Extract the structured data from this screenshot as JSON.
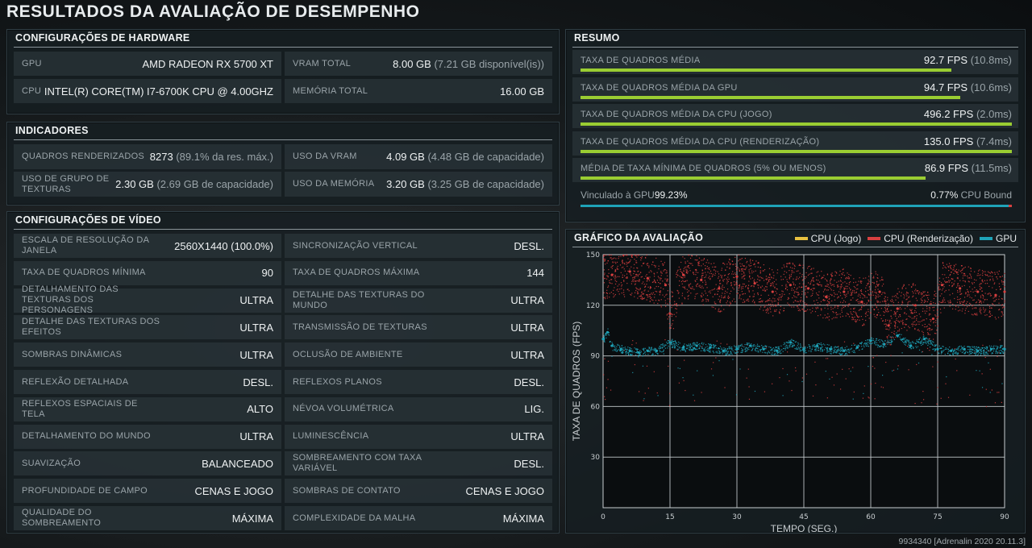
{
  "title": "RESULTADOS DA AVALIAÇÃO DE DESEMPENHO",
  "hardware": {
    "header": "CONFIGURAÇÕES DE HARDWARE",
    "rows": [
      [
        {
          "label": "GPU",
          "value": "AMD RADEON RX 5700 XT",
          "dim": ""
        },
        {
          "label": "VRAM TOTAL",
          "value": "8.00 GB",
          "dim": "(7.21 GB disponível(is))"
        }
      ],
      [
        {
          "label": "CPU",
          "value": "INTEL(R) CORE(TM) I7-6700K CPU @ 4.00GHZ",
          "dim": ""
        },
        {
          "label": "MEMÓRIA TOTAL",
          "value": "16.00 GB",
          "dim": ""
        }
      ]
    ]
  },
  "indicators": {
    "header": "INDICADORES",
    "rows": [
      [
        {
          "label": "QUADROS RENDERIZADOS",
          "value": "8273",
          "dim": "(89.1% da res. máx.)"
        },
        {
          "label": "USO DA VRAM",
          "value": "4.09 GB",
          "dim": "(4.48 GB de capacidade)"
        }
      ],
      [
        {
          "label": "USO DE GRUPO DE TEXTURAS",
          "value": "2.30 GB",
          "dim": "(2.69 GB de capacidade)"
        },
        {
          "label": "USO DA MEMÓRIA",
          "value": "3.20 GB",
          "dim": "(3.25 GB de capacidade)"
        }
      ]
    ]
  },
  "video": {
    "header": "CONFIGURAÇÕES DE VÍDEO",
    "rows": [
      [
        {
          "label": "ESCALA DE RESOLUÇÃO DA JANELA",
          "value": "2560X1440 (100.0%)"
        },
        {
          "label": "SINCRONIZAÇÃO VERTICAL",
          "value": "DESL."
        }
      ],
      [
        {
          "label": "TAXA DE QUADROS MÍNIMA",
          "value": "90"
        },
        {
          "label": "TAXA DE QUADROS MÁXIMA",
          "value": "144"
        }
      ],
      [
        {
          "label": "DETALHAMENTO DAS TEXTURAS DOS PERSONAGENS",
          "value": "ULTRA"
        },
        {
          "label": "DETALHE DAS TEXTURAS DO MUNDO",
          "value": "ULTRA"
        }
      ],
      [
        {
          "label": "DETALHE DAS TEXTURAS DOS EFEITOS",
          "value": "ULTRA"
        },
        {
          "label": "TRANSMISSÃO DE TEXTURAS",
          "value": "ULTRA"
        }
      ],
      [
        {
          "label": "SOMBRAS DINÂMICAS",
          "value": "ULTRA"
        },
        {
          "label": "OCLUSÃO DE AMBIENTE",
          "value": "ULTRA"
        }
      ],
      [
        {
          "label": "REFLEXÃO DETALHADA",
          "value": "DESL."
        },
        {
          "label": "REFLEXOS PLANOS",
          "value": "DESL."
        }
      ],
      [
        {
          "label": "REFLEXOS ESPACIAIS DE TELA",
          "value": "ALTO"
        },
        {
          "label": "NÉVOA VOLUMÉTRICA",
          "value": "LIG."
        }
      ],
      [
        {
          "label": "DETALHAMENTO DO MUNDO",
          "value": "ULTRA"
        },
        {
          "label": "LUMINESCÊNCIA",
          "value": "ULTRA"
        }
      ],
      [
        {
          "label": "SUAVIZAÇÃO",
          "value": "BALANCEADO"
        },
        {
          "label": "SOMBREAMENTO COM TAXA VARIÁVEL",
          "value": "DESL."
        }
      ],
      [
        {
          "label": "PROFUNDIDADE DE CAMPO",
          "value": "CENAS E JOGO"
        },
        {
          "label": "SOMBRAS DE CONTATO",
          "value": "CENAS E JOGO"
        }
      ],
      [
        {
          "label": "QUALIDADE DO SOMBREAMENTO",
          "value": "MÁXIMA"
        },
        {
          "label": "COMPLEXIDADE DA MALHA",
          "value": "MÁXIMA"
        }
      ]
    ]
  },
  "summary": {
    "header": "RESUMO",
    "bar_color": "#9acd32",
    "rows": [
      {
        "label": "TAXA DE QUADROS MÉDIA",
        "value": "92.7 FPS",
        "dim": "(10.8ms)",
        "fill": 0.86
      },
      {
        "label": "TAXA DE QUADROS MÉDIA DA GPU",
        "value": "94.7 FPS",
        "dim": "(10.6ms)",
        "fill": 0.88
      },
      {
        "label": "TAXA DE QUADROS MÉDIA DA CPU (JOGO)",
        "value": "496.2 FPS",
        "dim": "(2.0ms)",
        "fill": 1.0
      },
      {
        "label": "TAXA DE QUADROS MÉDIA DA CPU (RENDERIZAÇÃO)",
        "value": "135.0 FPS",
        "dim": "(7.4ms)",
        "fill": 1.0
      },
      {
        "label": "MÉDIA DE TAXA MÍNIMA DE QUADROS (5% OU MENOS)",
        "value": "86.9 FPS",
        "dim": "(11.5ms)",
        "fill": 0.8
      }
    ],
    "bound": {
      "left": "Vinculado à GPU",
      "left_value": "99.23%",
      "right_value": "0.77%",
      "right": "CPU Bound",
      "gpu_fraction": 0.9923,
      "gpu_color": "#1fa3b8",
      "cpu_color": "#d84040"
    }
  },
  "chart": {
    "header": "GRÁFICO DA AVALIAÇÃO",
    "legend": [
      {
        "name": "CPU (Jogo)",
        "color": "#e8c040"
      },
      {
        "name": "CPU (Renderização)",
        "color": "#d84040"
      },
      {
        "name": "GPU",
        "color": "#1fa3b8"
      }
    ]
  },
  "chart_data": {
    "type": "scatter",
    "xlabel": "TEMPO (SEG.)",
    "ylabel": "TAXA DE QUADROS (FPS)",
    "xlim": [
      0,
      90
    ],
    "ylim": [
      0,
      150
    ],
    "xticks": [
      0,
      15,
      30,
      45,
      60,
      75,
      90
    ],
    "yticks": [
      30,
      60,
      90,
      120,
      150
    ],
    "grid": true,
    "series": [
      {
        "name": "CPU (Jogo)",
        "color": "#e8c040",
        "values": []
      },
      {
        "name": "CPU (Renderização)",
        "color": "#d84040",
        "x": [
          2,
          6,
          10,
          14,
          15,
          18,
          22,
          26,
          30,
          34,
          38,
          42,
          46,
          50,
          54,
          58,
          62,
          64,
          66,
          70,
          74,
          76,
          80,
          84,
          88,
          90
        ],
        "values": [
          138,
          140,
          136,
          132,
          115,
          138,
          135,
          130,
          137,
          133,
          128,
          132,
          130,
          125,
          128,
          122,
          128,
          108,
          118,
          120,
          112,
          132,
          130,
          128,
          126,
          128
        ]
      },
      {
        "name": "GPU",
        "color": "#1fa3b8",
        "x": [
          0,
          1,
          2,
          4,
          6,
          8,
          10,
          12,
          15,
          18,
          21,
          24,
          27,
          30,
          33,
          36,
          39,
          42,
          45,
          48,
          51,
          54,
          57,
          60,
          63,
          66,
          69,
          72,
          75,
          78,
          81,
          84,
          87,
          90
        ],
        "values": [
          100,
          104,
          96,
          94,
          93,
          92,
          93,
          93,
          98,
          95,
          96,
          95,
          93,
          94,
          96,
          94,
          93,
          98,
          94,
          96,
          94,
          93,
          95,
          99,
          97,
          102,
          96,
          100,
          94,
          93,
          94,
          93,
          94,
          94
        ]
      }
    ]
  },
  "footer": "9934340 [Adrenalin 2020 20.11.3]"
}
